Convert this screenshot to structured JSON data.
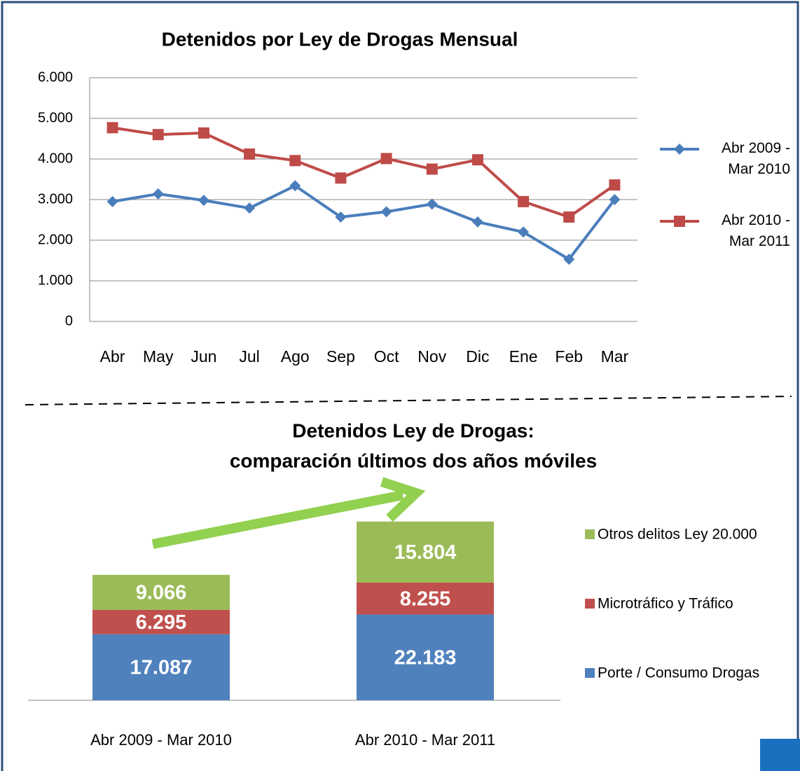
{
  "chart_data": [
    {
      "type": "line",
      "title": "Detenidos por Ley de Drogas Mensual",
      "categories": [
        "Abr",
        "May",
        "Jun",
        "Jul",
        "Ago",
        "Sep",
        "Oct",
        "Nov",
        "Dic",
        "Ene",
        "Feb",
        "Mar"
      ],
      "series": [
        {
          "name": "Abr 2009 - Mar 2010",
          "color": "#4a7ebb",
          "marker": "diamond",
          "values": [
            2950,
            3140,
            2980,
            2790,
            3340,
            2570,
            2700,
            2890,
            2450,
            2200,
            1530,
            3000
          ]
        },
        {
          "name": "Abr 2010 - Mar 2011",
          "color": "#be4b48",
          "marker": "square",
          "values": [
            4770,
            4600,
            4640,
            4120,
            3960,
            3530,
            4010,
            3750,
            3980,
            2950,
            2570,
            3360
          ]
        }
      ],
      "ylim": [
        0,
        6000
      ],
      "yticks": [
        0,
        {
          "value": 1000,
          "label": "1.000"
        },
        {
          "value": 2000,
          "label": "2.000"
        },
        {
          "value": 3000,
          "label": "3.000"
        },
        {
          "value": 4000,
          "label": "4.000"
        },
        {
          "value": 5000,
          "label": "5.000"
        },
        {
          "value": 6000,
          "label": "6.000"
        }
      ],
      "grid": true,
      "legend": "right"
    },
    {
      "type": "stacked-bar",
      "title": [
        "Detenidos Ley de Drogas:",
        "comparación últimos dos años móviles"
      ],
      "categories": [
        "Abr 2009 - Mar 2010",
        "Abr 2010 - Mar 2011"
      ],
      "series": [
        {
          "name": "Porte / Consumo Drogas",
          "color": "#4f81bd",
          "values": [
            17087,
            22183
          ],
          "value_labels": [
            "17.087",
            "22.183"
          ]
        },
        {
          "name": "Microtráfico y Tráfico",
          "color": "#c0504d",
          "values": [
            6295,
            8255
          ],
          "value_labels": [
            "6.295",
            "8.255"
          ]
        },
        {
          "name": "Otros delitos Ley 20.000",
          "color": "#9bbb59",
          "values": [
            9066,
            15804
          ],
          "value_labels": [
            "9.066",
            "15.804"
          ]
        }
      ],
      "legend": "right"
    }
  ]
}
